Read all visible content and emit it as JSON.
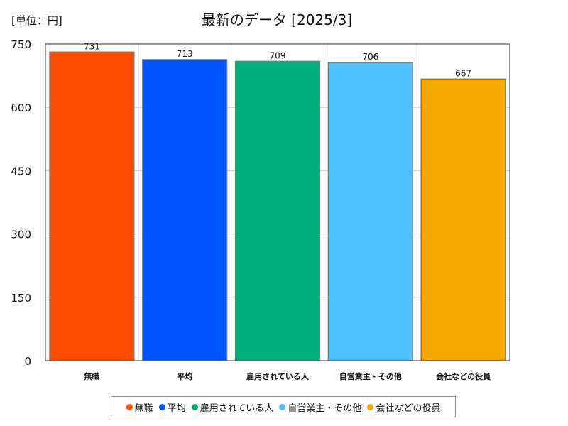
{
  "unit_label": "[単位：円]",
  "chart_data": {
    "type": "bar",
    "title": "最新のデータ [2025/3]",
    "categories": [
      "無職",
      "平均",
      "雇用されている人",
      "自営業主・その他",
      "会社などの役員"
    ],
    "values": [
      731,
      713,
      709,
      706,
      667
    ],
    "colors": [
      "#FF4E00",
      "#0055FF",
      "#00AE7A",
      "#4EC1FF",
      "#F5A800"
    ],
    "ylim": [
      0,
      750
    ],
    "yticks": [
      0,
      150,
      300,
      450,
      600,
      750
    ],
    "xlabel": "",
    "ylabel": "",
    "grid": true,
    "legend_position": "bottom"
  }
}
